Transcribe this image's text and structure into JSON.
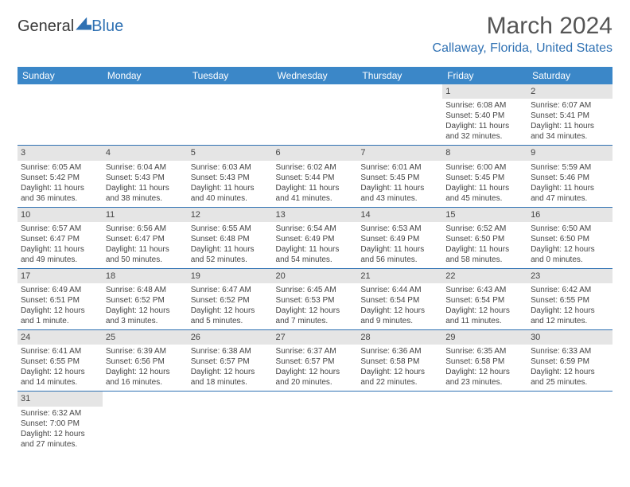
{
  "logo": {
    "part1": "General",
    "part2": "Blue"
  },
  "title": "March 2024",
  "location": "Callaway, Florida, United States",
  "weekdays": [
    "Sunday",
    "Monday",
    "Tuesday",
    "Wednesday",
    "Thursday",
    "Friday",
    "Saturday"
  ],
  "colors": {
    "header_bg": "#3b87c8",
    "accent": "#2f71b3",
    "daynum_bg": "#e5e5e5",
    "text": "#444444",
    "background": "#ffffff"
  },
  "typography": {
    "title_fontsize_pt": 22,
    "location_fontsize_pt": 12,
    "header_fontsize_pt": 9,
    "cell_fontsize_pt": 7
  },
  "layout": {
    "start_weekday_index": 5,
    "num_days": 31,
    "columns": 7,
    "rows": 6
  },
  "days": [
    {
      "n": 1,
      "sunrise": "6:08 AM",
      "sunset": "5:40 PM",
      "daylight": "11 hours and 32 minutes."
    },
    {
      "n": 2,
      "sunrise": "6:07 AM",
      "sunset": "5:41 PM",
      "daylight": "11 hours and 34 minutes."
    },
    {
      "n": 3,
      "sunrise": "6:05 AM",
      "sunset": "5:42 PM",
      "daylight": "11 hours and 36 minutes."
    },
    {
      "n": 4,
      "sunrise": "6:04 AM",
      "sunset": "5:43 PM",
      "daylight": "11 hours and 38 minutes."
    },
    {
      "n": 5,
      "sunrise": "6:03 AM",
      "sunset": "5:43 PM",
      "daylight": "11 hours and 40 minutes."
    },
    {
      "n": 6,
      "sunrise": "6:02 AM",
      "sunset": "5:44 PM",
      "daylight": "11 hours and 41 minutes."
    },
    {
      "n": 7,
      "sunrise": "6:01 AM",
      "sunset": "5:45 PM",
      "daylight": "11 hours and 43 minutes."
    },
    {
      "n": 8,
      "sunrise": "6:00 AM",
      "sunset": "5:45 PM",
      "daylight": "11 hours and 45 minutes."
    },
    {
      "n": 9,
      "sunrise": "5:59 AM",
      "sunset": "5:46 PM",
      "daylight": "11 hours and 47 minutes."
    },
    {
      "n": 10,
      "sunrise": "6:57 AM",
      "sunset": "6:47 PM",
      "daylight": "11 hours and 49 minutes."
    },
    {
      "n": 11,
      "sunrise": "6:56 AM",
      "sunset": "6:47 PM",
      "daylight": "11 hours and 50 minutes."
    },
    {
      "n": 12,
      "sunrise": "6:55 AM",
      "sunset": "6:48 PM",
      "daylight": "11 hours and 52 minutes."
    },
    {
      "n": 13,
      "sunrise": "6:54 AM",
      "sunset": "6:49 PM",
      "daylight": "11 hours and 54 minutes."
    },
    {
      "n": 14,
      "sunrise": "6:53 AM",
      "sunset": "6:49 PM",
      "daylight": "11 hours and 56 minutes."
    },
    {
      "n": 15,
      "sunrise": "6:52 AM",
      "sunset": "6:50 PM",
      "daylight": "11 hours and 58 minutes."
    },
    {
      "n": 16,
      "sunrise": "6:50 AM",
      "sunset": "6:50 PM",
      "daylight": "12 hours and 0 minutes."
    },
    {
      "n": 17,
      "sunrise": "6:49 AM",
      "sunset": "6:51 PM",
      "daylight": "12 hours and 1 minute."
    },
    {
      "n": 18,
      "sunrise": "6:48 AM",
      "sunset": "6:52 PM",
      "daylight": "12 hours and 3 minutes."
    },
    {
      "n": 19,
      "sunrise": "6:47 AM",
      "sunset": "6:52 PM",
      "daylight": "12 hours and 5 minutes."
    },
    {
      "n": 20,
      "sunrise": "6:45 AM",
      "sunset": "6:53 PM",
      "daylight": "12 hours and 7 minutes."
    },
    {
      "n": 21,
      "sunrise": "6:44 AM",
      "sunset": "6:54 PM",
      "daylight": "12 hours and 9 minutes."
    },
    {
      "n": 22,
      "sunrise": "6:43 AM",
      "sunset": "6:54 PM",
      "daylight": "12 hours and 11 minutes."
    },
    {
      "n": 23,
      "sunrise": "6:42 AM",
      "sunset": "6:55 PM",
      "daylight": "12 hours and 12 minutes."
    },
    {
      "n": 24,
      "sunrise": "6:41 AM",
      "sunset": "6:55 PM",
      "daylight": "12 hours and 14 minutes."
    },
    {
      "n": 25,
      "sunrise": "6:39 AM",
      "sunset": "6:56 PM",
      "daylight": "12 hours and 16 minutes."
    },
    {
      "n": 26,
      "sunrise": "6:38 AM",
      "sunset": "6:57 PM",
      "daylight": "12 hours and 18 minutes."
    },
    {
      "n": 27,
      "sunrise": "6:37 AM",
      "sunset": "6:57 PM",
      "daylight": "12 hours and 20 minutes."
    },
    {
      "n": 28,
      "sunrise": "6:36 AM",
      "sunset": "6:58 PM",
      "daylight": "12 hours and 22 minutes."
    },
    {
      "n": 29,
      "sunrise": "6:35 AM",
      "sunset": "6:58 PM",
      "daylight": "12 hours and 23 minutes."
    },
    {
      "n": 30,
      "sunrise": "6:33 AM",
      "sunset": "6:59 PM",
      "daylight": "12 hours and 25 minutes."
    },
    {
      "n": 31,
      "sunrise": "6:32 AM",
      "sunset": "7:00 PM",
      "daylight": "12 hours and 27 minutes."
    }
  ],
  "labels": {
    "sunrise_prefix": "Sunrise: ",
    "sunset_prefix": "Sunset: ",
    "daylight_prefix": "Daylight: "
  }
}
